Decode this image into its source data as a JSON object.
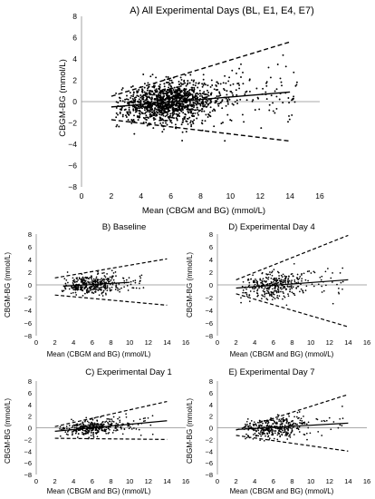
{
  "figure": {
    "panels": [
      {
        "id": "A",
        "title": "A) All Experimental Days (BL, E1, E4, E7)",
        "xlabel": "Mean (CBGM and BG) (mmol/L)",
        "ylabel": "CBGM-BG (mmol/L)",
        "xlim": [
          0,
          16
        ],
        "ylim": [
          -8,
          8
        ],
        "xticks": [
          0,
          2,
          4,
          6,
          8,
          10,
          12,
          14,
          16
        ],
        "yticks": [
          -8,
          -6,
          -4,
          -2,
          0,
          2,
          4,
          6,
          8
        ],
        "xtick_labels": [
          "0",
          "2",
          "4",
          "6",
          "8",
          "10",
          "12",
          "14",
          "16"
        ],
        "ytick_labels": [
          "−8",
          "−6",
          "−4",
          "−2",
          "0",
          "2",
          "4",
          "6",
          "8"
        ],
        "n_points": 1400,
        "x_range": [
          2.3,
          14.5
        ],
        "spread_intercept": 1.2,
        "spread_slope": 0.08,
        "mean_line": {
          "x": [
            2,
            14
          ],
          "y": [
            -0.5,
            0.9
          ]
        },
        "upper_loa": {
          "x": [
            2,
            14
          ],
          "y": [
            0.5,
            5.6
          ]
        },
        "lower_loa": {
          "x": [
            2,
            14
          ],
          "y": [
            -1.7,
            -3.7
          ]
        }
      },
      {
        "id": "B",
        "title": "B) Baseline",
        "xlabel": "Mean (CBGM and BG) (mmol/L)",
        "ylabel": "CBGM-BG (mmol/L)",
        "xlim": [
          0,
          16
        ],
        "ylim": [
          -8,
          8
        ],
        "xticks": [
          0,
          2,
          4,
          6,
          8,
          10,
          12,
          14,
          16
        ],
        "yticks": [
          -8,
          -6,
          -4,
          -2,
          0,
          2,
          4,
          6,
          8
        ],
        "xtick_labels": [
          "0",
          "2",
          "4",
          "6",
          "8",
          "10",
          "12",
          "14",
          "16"
        ],
        "ytick_labels": [
          "−8",
          "−6",
          "−4",
          "−2",
          "0",
          "2",
          "4",
          "6",
          "8"
        ],
        "n_points": 360,
        "x_range": [
          2.5,
          11.5
        ],
        "spread_intercept": 1.0,
        "spread_slope": 0.05,
        "mean_line": {
          "x": [
            3,
            10
          ],
          "y": [
            -0.2,
            0.4
          ]
        },
        "upper_loa": {
          "x": [
            2,
            14
          ],
          "y": [
            1.1,
            4.1
          ]
        },
        "lower_loa": {
          "x": [
            2,
            14
          ],
          "y": [
            -1.6,
            -3.2
          ]
        }
      },
      {
        "id": "D",
        "title": "D) Experimental Day 4",
        "xlabel": "Mean (CBGM and BG) (mmol/L)",
        "ylabel": "CBGM-BG (mmol/L)",
        "xlim": [
          0,
          16
        ],
        "ylim": [
          -8,
          8
        ],
        "xticks": [
          0,
          2,
          4,
          6,
          8,
          10,
          12,
          14,
          16
        ],
        "yticks": [
          -8,
          -6,
          -4,
          -2,
          0,
          2,
          4,
          6,
          8
        ],
        "xtick_labels": [
          "0",
          "2",
          "4",
          "6",
          "8",
          "10",
          "12",
          "14",
          "16"
        ],
        "ytick_labels": [
          "−8",
          "−6",
          "−4",
          "−2",
          "0",
          "2",
          "4",
          "6",
          "8"
        ],
        "n_points": 360,
        "x_range": [
          2.5,
          13.5
        ],
        "spread_intercept": 1.2,
        "spread_slope": 0.1,
        "mean_line": {
          "x": [
            2,
            14
          ],
          "y": [
            -0.5,
            0.8
          ]
        },
        "upper_loa": {
          "x": [
            2,
            14
          ],
          "y": [
            0.8,
            7.8
          ]
        },
        "lower_loa": {
          "x": [
            2,
            14
          ],
          "y": [
            -1.4,
            -6.6
          ]
        }
      },
      {
        "id": "C",
        "title": "C) Experimental Day 1",
        "xlabel": "Mean (CBGM and BG) (mmol/L)",
        "ylabel": "CBGM-BG (mmol/L)",
        "xlim": [
          0,
          16
        ],
        "ylim": [
          -8,
          8
        ],
        "xticks": [
          0,
          2,
          4,
          6,
          8,
          10,
          12,
          14,
          16
        ],
        "yticks": [
          -8,
          -6,
          -4,
          -2,
          0,
          2,
          4,
          6,
          8
        ],
        "xtick_labels": [
          "0",
          "2",
          "4",
          "6",
          "8",
          "10",
          "12",
          "14",
          "16"
        ],
        "ytick_labels": [
          "−8",
          "−6",
          "−4",
          "−2",
          "0",
          "2",
          "4",
          "6",
          "8"
        ],
        "n_points": 360,
        "x_range": [
          2.5,
          12.5
        ],
        "spread_intercept": 0.9,
        "spread_slope": 0.06,
        "mean_line": {
          "x": [
            2,
            14
          ],
          "y": [
            -0.6,
            1.2
          ]
        },
        "upper_loa": {
          "x": [
            2,
            14
          ],
          "y": [
            0.2,
            4.5
          ]
        },
        "lower_loa": {
          "x": [
            2,
            14
          ],
          "y": [
            -1.8,
            -2.0
          ]
        }
      },
      {
        "id": "E",
        "title": "E) Experimental Day 7",
        "xlabel": "Mean (CBGM and BG) (mmol/L)",
        "ylabel": "CBGM-BG (mmol/L)",
        "xlim": [
          0,
          16
        ],
        "ylim": [
          -8,
          8
        ],
        "xticks": [
          0,
          2,
          4,
          6,
          8,
          10,
          12,
          14,
          16
        ],
        "yticks": [
          -8,
          -6,
          -4,
          -2,
          0,
          2,
          4,
          6,
          8
        ],
        "xtick_labels": [
          "0",
          "2",
          "4",
          "6",
          "8",
          "10",
          "12",
          "14",
          "16"
        ],
        "ytick_labels": [
          "−8",
          "−6",
          "−4",
          "−2",
          "0",
          "2",
          "4",
          "6",
          "8"
        ],
        "n_points": 360,
        "x_range": [
          2.5,
          13.5
        ],
        "spread_intercept": 1.2,
        "spread_slope": 0.08,
        "mean_line": {
          "x": [
            2,
            14
          ],
          "y": [
            -0.3,
            0.8
          ]
        },
        "upper_loa": {
          "x": [
            2,
            14
          ],
          "y": [
            -0.4,
            5.7
          ]
        },
        "lower_loa": {
          "x": [
            2,
            14
          ],
          "y": [
            -1.3,
            -4.0
          ]
        }
      }
    ]
  },
  "chart_data": [
    {
      "type": "scatter",
      "title": "A) All Experimental Days (BL, E1, E4, E7)",
      "xlabel": "Mean (CBGM and BG) (mmol/L)",
      "ylabel": "CBGM-BG (mmol/L)",
      "xlim": [
        0,
        16
      ],
      "ylim": [
        -8,
        8
      ],
      "grid": false,
      "legend": "none",
      "approx_point_count": 1400,
      "x_range": [
        2.3,
        14.5
      ],
      "lines": {
        "mean": {
          "x": [
            2,
            14
          ],
          "y": [
            -0.5,
            0.9
          ],
          "style": "solid"
        },
        "upper_limit": {
          "x": [
            2,
            14
          ],
          "y": [
            0.5,
            5.6
          ],
          "style": "dashed"
        },
        "lower_limit": {
          "x": [
            2,
            14
          ],
          "y": [
            -1.7,
            -3.7
          ],
          "style": "dashed"
        }
      }
    },
    {
      "type": "scatter",
      "title": "B) Baseline",
      "xlabel": "Mean (CBGM and BG) (mmol/L)",
      "ylabel": "CBGM-BG (mmol/L)",
      "xlim": [
        0,
        16
      ],
      "ylim": [
        -8,
        8
      ],
      "grid": false,
      "legend": "none",
      "approx_point_count": 360,
      "x_range": [
        2.5,
        11.5
      ],
      "lines": {
        "mean": {
          "x": [
            3,
            10
          ],
          "y": [
            -0.2,
            0.4
          ],
          "style": "solid"
        },
        "upper_limit": {
          "x": [
            2,
            14
          ],
          "y": [
            1.1,
            4.1
          ],
          "style": "dashed"
        },
        "lower_limit": {
          "x": [
            2,
            14
          ],
          "y": [
            -1.6,
            -3.2
          ],
          "style": "dashed"
        }
      }
    },
    {
      "type": "scatter",
      "title": "D) Experimental Day 4",
      "xlabel": "Mean (CBGM and BG) (mmol/L)",
      "ylabel": "CBGM-BG (mmol/L)",
      "xlim": [
        0,
        16
      ],
      "ylim": [
        -8,
        8
      ],
      "grid": false,
      "legend": "none",
      "approx_point_count": 360,
      "x_range": [
        2.5,
        13.5
      ],
      "lines": {
        "mean": {
          "x": [
            2,
            14
          ],
          "y": [
            -0.5,
            0.8
          ],
          "style": "solid"
        },
        "upper_limit": {
          "x": [
            2,
            14
          ],
          "y": [
            0.8,
            7.8
          ],
          "style": "dashed"
        },
        "lower_limit": {
          "x": [
            2,
            14
          ],
          "y": [
            -1.4,
            -6.6
          ],
          "style": "dashed"
        }
      }
    },
    {
      "type": "scatter",
      "title": "C) Experimental Day 1",
      "xlabel": "Mean (CBGM and BG) (mmol/L)",
      "ylabel": "CBGM-BG (mmol/L)",
      "xlim": [
        0,
        16
      ],
      "ylim": [
        -8,
        8
      ],
      "grid": false,
      "legend": "none",
      "approx_point_count": 360,
      "x_range": [
        2.5,
        12.5
      ],
      "lines": {
        "mean": {
          "x": [
            2,
            14
          ],
          "y": [
            -0.6,
            1.2
          ],
          "style": "solid"
        },
        "upper_limit": {
          "x": [
            2,
            14
          ],
          "y": [
            0.2,
            4.5
          ],
          "style": "dashed"
        },
        "lower_limit": {
          "x": [
            2,
            14
          ],
          "y": [
            -1.8,
            -2.0
          ],
          "style": "dashed"
        }
      }
    },
    {
      "type": "scatter",
      "title": "E) Experimental Day 7",
      "xlabel": "Mean (CBGM and BG) (mmol/L)",
      "ylabel": "CBGM-BG (mmol/L)",
      "xlim": [
        0,
        16
      ],
      "ylim": [
        -8,
        8
      ],
      "grid": false,
      "legend": "none",
      "approx_point_count": 360,
      "x_range": [
        2.5,
        13.5
      ],
      "lines": {
        "mean": {
          "x": [
            2,
            14
          ],
          "y": [
            -0.3,
            0.8
          ],
          "style": "solid"
        },
        "upper_limit": {
          "x": [
            2,
            14
          ],
          "y": [
            -0.4,
            5.7
          ],
          "style": "dashed"
        },
        "lower_limit": {
          "x": [
            2,
            14
          ],
          "y": [
            -1.3,
            -4.0
          ],
          "style": "dashed"
        }
      }
    }
  ]
}
